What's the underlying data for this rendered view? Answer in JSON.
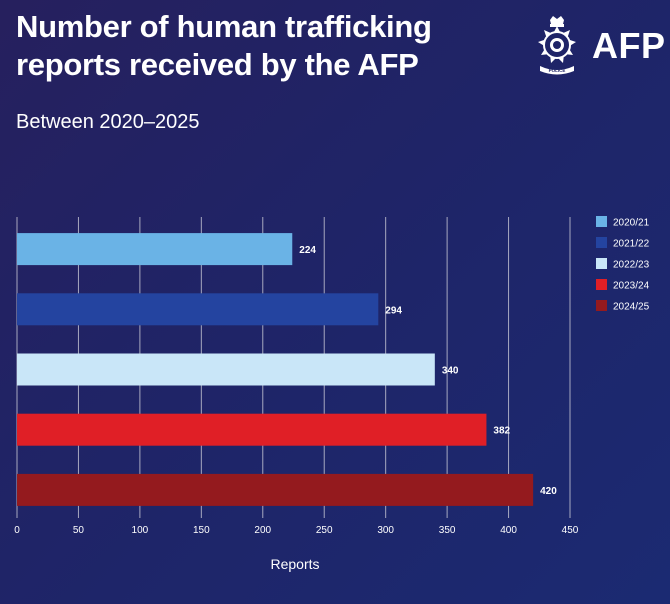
{
  "header": {
    "title": "Number of human trafficking reports received by the AFP",
    "subtitle": "Between 2020–2025"
  },
  "logo": {
    "text": "AFP",
    "badge_icon": "police-badge-icon",
    "badge_text": "POLICE"
  },
  "colors": {
    "background": "#211f63",
    "gridline": "#c9c9d6"
  },
  "chart_data": {
    "type": "bar",
    "orientation": "horizontal",
    "categories": [
      "2020/21",
      "2021/22",
      "2022/23",
      "2023/24",
      "2024/25"
    ],
    "values": [
      224,
      294,
      340,
      382,
      420
    ],
    "colors": [
      "#6ab3e6",
      "#2444a0",
      "#c9e6f8",
      "#e01f26",
      "#941a1e"
    ],
    "xlabel": "Reports",
    "ylabel": "",
    "xlim": [
      0,
      450
    ],
    "xticks": [
      0,
      50,
      100,
      150,
      200,
      250,
      300,
      350,
      400,
      450
    ],
    "grid": true,
    "legend": {
      "position": "right",
      "entries": [
        "2020/21",
        "2021/22",
        "2022/23",
        "2023/24",
        "2024/25"
      ]
    }
  }
}
